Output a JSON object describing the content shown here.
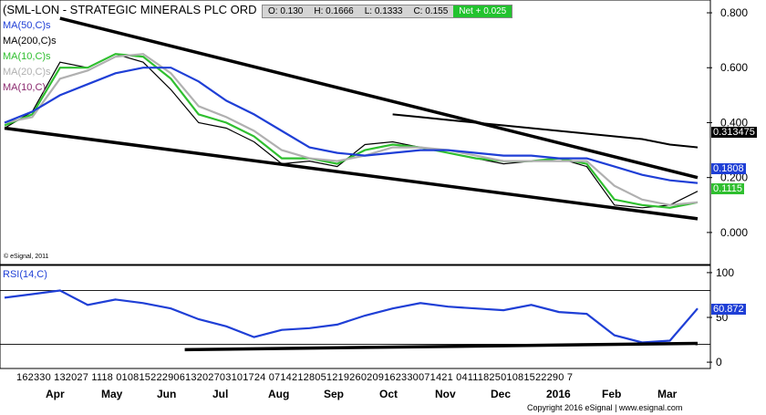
{
  "header": {
    "title": "(SML-LON - STRATEGIC MINERALS PLC ORD",
    "quote_open": "O: 0.130",
    "quote_high": "H: 0.1666",
    "quote_low": "L: 0.1333",
    "quote_close": "C: 0.155",
    "net_change": "Net + 0.025"
  },
  "legend": [
    {
      "label": "MA(50,C)s",
      "color": "#1f3fd6"
    },
    {
      "label": "MA(200,C)s",
      "color": "#000000"
    },
    {
      "label": "MA(10,C)s",
      "color": "#2fbf2f"
    },
    {
      "label": "MA(20,C)s",
      "color": "#b0b0b0"
    },
    {
      "label": "MA(10,C)",
      "color": "#8b2a6f"
    }
  ],
  "copyright": "© eSignal, 2011",
  "footer": "Copyright 2016 eSignal | www.esignal.com",
  "rsi_label": "RSI(14,C)",
  "price_tags": [
    {
      "text": "0.313475",
      "bg": "#000000",
      "fg": "#ffffff"
    },
    {
      "text": "0.1808",
      "bg": "#1f3fd6",
      "fg": "#ffffff"
    },
    {
      "text": "0.1115",
      "bg": "#2fbf2f",
      "fg": "#ffffff"
    }
  ],
  "rsi_tag": {
    "text": "60.872",
    "bg": "#1f3fd6",
    "fg": "#ffffff"
  },
  "chart_data": [
    {
      "type": "line",
      "panel": "price",
      "y_ticks": [
        "0.800",
        "0.600",
        "0.400",
        "0.200",
        "0.000"
      ],
      "ylim": [
        -0.1,
        0.83
      ],
      "x": [
        0,
        4,
        8,
        12,
        16,
        20,
        24,
        28,
        32,
        36,
        40,
        44,
        48,
        52,
        56,
        60,
        64,
        68,
        72,
        76,
        80,
        84,
        88,
        92,
        96,
        100
      ],
      "series": [
        {
          "name": "Price",
          "color": "#000000",
          "values": [
            0.38,
            0.44,
            0.62,
            0.6,
            0.65,
            0.62,
            0.52,
            0.4,
            0.38,
            0.33,
            0.25,
            0.26,
            0.24,
            0.32,
            0.33,
            0.31,
            0.29,
            0.27,
            0.25,
            0.26,
            0.27,
            0.24,
            0.1,
            0.09,
            0.1,
            0.15
          ]
        },
        {
          "name": "MA(10,C)s",
          "color": "#2fbf2f",
          "values": [
            0.39,
            0.43,
            0.6,
            0.6,
            0.65,
            0.64,
            0.56,
            0.43,
            0.4,
            0.35,
            0.27,
            0.27,
            0.25,
            0.3,
            0.32,
            0.31,
            0.29,
            0.27,
            0.26,
            0.26,
            0.27,
            0.25,
            0.12,
            0.1,
            0.09,
            0.11
          ]
        },
        {
          "name": "MA(20,C)s",
          "color": "#b0b0b0",
          "values": [
            0.4,
            0.42,
            0.56,
            0.59,
            0.64,
            0.65,
            0.58,
            0.46,
            0.42,
            0.37,
            0.3,
            0.27,
            0.26,
            0.28,
            0.31,
            0.31,
            0.3,
            0.28,
            0.26,
            0.26,
            0.26,
            0.26,
            0.17,
            0.12,
            0.1,
            0.11
          ]
        },
        {
          "name": "MA(50,C)s",
          "color": "#1f3fd6",
          "values": [
            0.4,
            0.44,
            0.5,
            0.54,
            0.58,
            0.6,
            0.6,
            0.55,
            0.48,
            0.43,
            0.37,
            0.31,
            0.29,
            0.28,
            0.29,
            0.3,
            0.3,
            0.29,
            0.28,
            0.28,
            0.27,
            0.27,
            0.24,
            0.21,
            0.19,
            0.18
          ]
        },
        {
          "name": "MA(200,C)s",
          "color": "#000000",
          "values": [
            null,
            null,
            null,
            null,
            null,
            null,
            null,
            null,
            null,
            null,
            null,
            null,
            null,
            null,
            0.43,
            0.42,
            0.41,
            0.4,
            0.39,
            0.38,
            0.37,
            0.36,
            0.35,
            0.34,
            0.32,
            0.31
          ]
        }
      ],
      "trendlines": [
        {
          "from": [
            0,
            0.38
          ],
          "to": [
            100,
            0.05
          ]
        },
        {
          "from": [
            8,
            0.78
          ],
          "to": [
            100,
            0.2
          ]
        }
      ]
    },
    {
      "type": "line",
      "panel": "rsi",
      "y_ticks": [
        "100",
        "50",
        "0"
      ],
      "ylim": [
        -5,
        105
      ],
      "hlines": [
        80,
        20
      ],
      "x": [
        0,
        4,
        8,
        12,
        16,
        20,
        24,
        28,
        32,
        36,
        40,
        44,
        48,
        52,
        56,
        60,
        64,
        68,
        72,
        76,
        80,
        84,
        88,
        92,
        96,
        100
      ],
      "series": [
        {
          "name": "RSI(14,C)",
          "color": "#1f3fd6",
          "values": [
            72,
            76,
            80,
            64,
            70,
            66,
            60,
            48,
            40,
            28,
            36,
            38,
            42,
            52,
            60,
            66,
            62,
            60,
            58,
            64,
            56,
            54,
            30,
            22,
            24,
            60
          ]
        }
      ],
      "trendlines": [
        {
          "from": [
            26,
            14
          ],
          "to": [
            100,
            21
          ]
        }
      ]
    }
  ],
  "x_axis": {
    "day_labels": "162330 132027 1118 01081522290613202703101724 07142128051219260209162330071421 0411182501081522290 7",
    "months": [
      "Apr",
      "May",
      "Jun",
      "Jul",
      "Aug",
      "Sep",
      "Oct",
      "Nov",
      "Dec",
      "2016",
      "Feb",
      "Mar"
    ]
  }
}
